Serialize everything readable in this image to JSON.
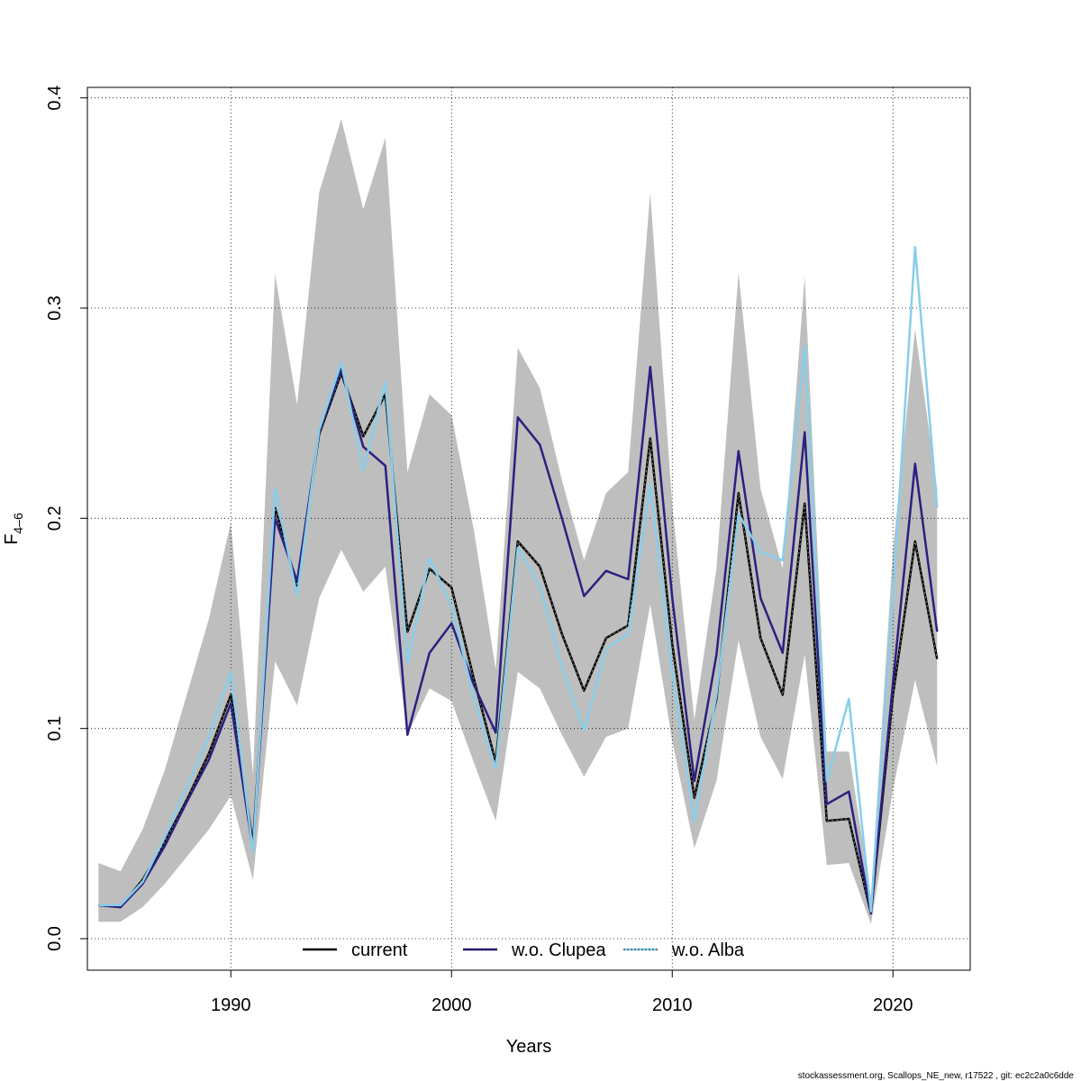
{
  "chart_data": {
    "type": "line",
    "xlabel": "Years",
    "ylabel_main": "F",
    "ylabel_sub": "4–6",
    "xlim": [
      1983.5,
      2023.5
    ],
    "ylim": [
      -0.015,
      0.405
    ],
    "x_ticks": [
      1990,
      2000,
      2010,
      2020
    ],
    "y_ticks": [
      0.0,
      0.1,
      0.2,
      0.3,
      0.4
    ],
    "y_tick_labels": [
      "0.0",
      "0.1",
      "0.2",
      "0.3",
      "0.4"
    ],
    "grid": true,
    "legend_position": "bottom",
    "years": [
      1984,
      1985,
      1986,
      1987,
      1988,
      1989,
      1990,
      1991,
      1992,
      1993,
      1994,
      1995,
      1996,
      1997,
      1998,
      1999,
      2000,
      2001,
      2002,
      2003,
      2004,
      2005,
      2006,
      2007,
      2008,
      2009,
      2010,
      2011,
      2012,
      2013,
      2014,
      2015,
      2016,
      2017,
      2018,
      2019,
      2020,
      2021,
      2022
    ],
    "confidence_band": {
      "color": "#bebebe",
      "upper": [
        0.036,
        0.032,
        0.052,
        0.08,
        0.116,
        0.152,
        0.198,
        0.078,
        0.316,
        0.254,
        0.355,
        0.39,
        0.347,
        0.381,
        0.222,
        0.259,
        0.249,
        0.195,
        0.128,
        0.281,
        0.262,
        0.218,
        0.18,
        0.212,
        0.222,
        0.355,
        0.206,
        0.104,
        0.176,
        0.317,
        0.214,
        0.176,
        0.315,
        0.089,
        0.089,
        0.02,
        0.185,
        0.29,
        0.214
      ],
      "lower": [
        0.008,
        0.008,
        0.015,
        0.026,
        0.039,
        0.052,
        0.068,
        0.028,
        0.132,
        0.111,
        0.162,
        0.185,
        0.165,
        0.177,
        0.097,
        0.119,
        0.113,
        0.084,
        0.056,
        0.127,
        0.119,
        0.097,
        0.077,
        0.096,
        0.1,
        0.159,
        0.094,
        0.043,
        0.075,
        0.142,
        0.096,
        0.076,
        0.135,
        0.035,
        0.036,
        0.007,
        0.071,
        0.123,
        0.082
      ]
    },
    "series": [
      {
        "name": "current",
        "color": "#000000",
        "values": [
          0.016,
          0.015,
          0.028,
          0.046,
          0.066,
          0.088,
          0.116,
          0.045,
          0.205,
          0.168,
          0.24,
          0.269,
          0.239,
          0.259,
          0.146,
          0.176,
          0.167,
          0.124,
          0.084,
          0.189,
          0.177,
          0.145,
          0.118,
          0.143,
          0.149,
          0.238,
          0.14,
          0.067,
          0.114,
          0.212,
          0.143,
          0.116,
          0.207,
          0.056,
          0.057,
          0.012,
          0.116,
          0.189,
          0.133
        ]
      },
      {
        "name": "w.o. Clupea",
        "color": "#2b2080",
        "values": [
          0.016,
          0.015,
          0.026,
          0.044,
          0.065,
          0.085,
          0.112,
          0.042,
          0.2,
          0.17,
          0.241,
          0.271,
          0.234,
          0.225,
          0.097,
          0.136,
          0.15,
          0.121,
          0.098,
          0.248,
          0.235,
          0.2,
          0.163,
          0.175,
          0.171,
          0.272,
          0.162,
          0.075,
          0.135,
          0.232,
          0.162,
          0.136,
          0.241,
          0.064,
          0.07,
          0.012,
          0.122,
          0.226,
          0.146
        ]
      },
      {
        "name": "w.o. Alba",
        "color": "#87ceeb",
        "values": [
          0.016,
          0.016,
          0.027,
          0.048,
          0.072,
          0.096,
          0.127,
          0.041,
          0.214,
          0.163,
          0.242,
          0.274,
          0.223,
          0.265,
          0.131,
          0.181,
          0.158,
          0.115,
          0.081,
          0.186,
          0.168,
          0.129,
          0.099,
          0.138,
          0.145,
          0.216,
          0.126,
          0.056,
          0.116,
          0.202,
          0.184,
          0.18,
          0.282,
          0.075,
          0.114,
          0.013,
          0.163,
          0.329,
          0.205
        ]
      }
    ]
  },
  "footer": "stockassessment.org, Scallops_NE_new, r17522 , git: ec2c2a0c6dde"
}
